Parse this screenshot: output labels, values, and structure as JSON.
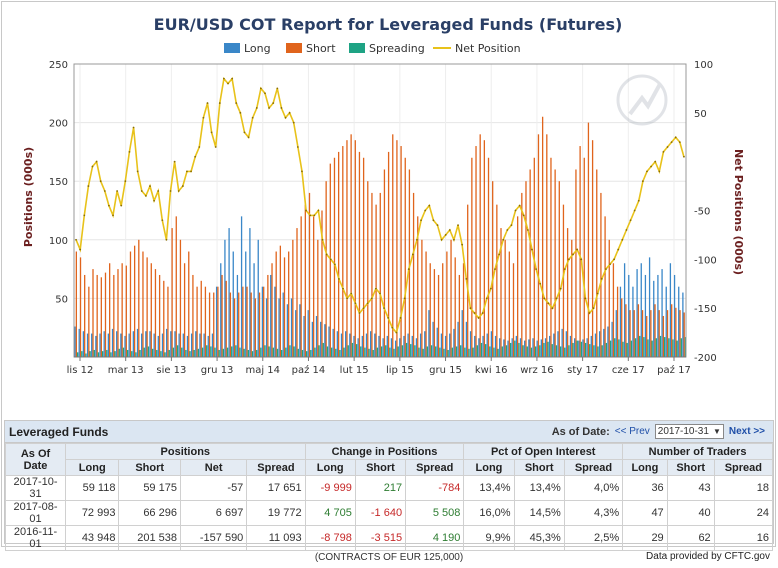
{
  "chart_data": {
    "type": "bar",
    "title": "EUR/USD COT Report for Leveraged Funds (Futures)",
    "ylabel": "Positions (000s)",
    "y2label": "Net Positions (000s)",
    "ylim": [
      0,
      250
    ],
    "y2lim": [
      -200,
      100
    ],
    "yticks": [
      50,
      100,
      150,
      200,
      250
    ],
    "y2ticks": [
      100,
      50,
      -50,
      -100,
      -150,
      -200
    ],
    "xticks": [
      "lis 12",
      "mar 13",
      "sie 13",
      "gru 13",
      "maj 14",
      "paź 14",
      "lut 15",
      "lip 15",
      "gru 15",
      "kwi 16",
      "wrz 16",
      "sty 17",
      "cze 17",
      "paź 17"
    ],
    "legend_position": "top",
    "grid": true,
    "colors": {
      "long": "#3a87c8",
      "short": "#e0641c",
      "spreading": "#1ea384",
      "net": "#e8c21a"
    },
    "series": [
      {
        "name": "Long",
        "values": [
          26,
          24,
          22,
          20,
          20,
          18,
          20,
          22,
          20,
          24,
          22,
          20,
          18,
          20,
          22,
          24,
          20,
          22,
          22,
          20,
          18,
          20,
          24,
          22,
          22,
          20,
          20,
          18,
          20,
          22,
          20,
          20,
          18,
          20,
          60,
          80,
          100,
          110,
          90,
          70,
          120,
          90,
          110,
          80,
          100,
          60,
          50,
          70,
          60,
          50,
          55,
          45,
          50,
          40,
          45,
          35,
          40,
          30,
          35,
          30,
          28,
          26,
          24,
          22,
          20,
          22,
          20,
          18,
          16,
          18,
          20,
          22,
          20,
          18,
          16,
          18,
          16,
          14,
          16,
          18,
          20,
          18,
          16,
          20,
          22,
          40,
          30,
          25,
          20,
          18,
          20,
          24,
          30,
          40,
          30,
          22,
          18,
          16,
          18,
          20,
          22,
          18,
          16,
          15,
          14,
          16,
          18,
          16,
          14,
          15,
          16,
          14,
          15,
          16,
          18,
          20,
          22,
          24,
          22,
          18,
          16,
          14,
          15,
          16,
          18,
          20,
          22,
          24,
          26,
          30,
          40,
          60,
          80,
          70,
          60,
          75,
          80,
          70,
          85,
          65,
          70,
          75,
          60,
          80,
          70,
          60,
          55
        ]
      },
      {
        "name": "Short",
        "values": [
          90,
          85,
          70,
          60,
          75,
          70,
          68,
          72,
          80,
          70,
          75,
          80,
          78,
          90,
          95,
          100,
          90,
          85,
          80,
          75,
          70,
          65,
          60,
          110,
          120,
          100,
          80,
          90,
          70,
          60,
          65,
          60,
          55,
          55,
          60,
          70,
          65,
          55,
          50,
          55,
          60,
          60,
          55,
          50,
          55,
          60,
          70,
          80,
          90,
          95,
          85,
          90,
          100,
          110,
          120,
          130,
          140,
          120,
          100,
          125,
          150,
          165,
          170,
          175,
          180,
          185,
          190,
          185,
          175,
          170,
          150,
          140,
          130,
          140,
          160,
          175,
          190,
          185,
          180,
          170,
          160,
          140,
          120,
          100,
          90,
          80,
          75,
          70,
          80,
          90,
          100,
          85,
          70,
          80,
          130,
          170,
          180,
          190,
          185,
          170,
          150,
          130,
          110,
          100,
          90,
          80,
          120,
          140,
          150,
          160,
          170,
          190,
          205,
          190,
          170,
          160,
          150,
          130,
          110,
          100,
          160,
          180,
          170,
          200,
          185,
          160,
          140,
          120,
          100,
          80,
          60,
          50,
          45,
          40,
          40,
          45,
          40,
          35,
          40,
          45,
          40,
          35,
          40,
          45,
          42,
          40,
          38
        ]
      },
      {
        "name": "Spreading",
        "values": [
          4,
          5,
          3,
          5,
          6,
          4,
          5,
          6,
          4,
          5,
          7,
          8,
          6,
          5,
          4,
          6,
          8,
          9,
          7,
          6,
          5,
          4,
          6,
          8,
          10,
          8,
          6,
          5,
          6,
          7,
          8,
          10,
          9,
          8,
          6,
          7,
          8,
          9,
          10,
          8,
          7,
          6,
          5,
          6,
          8,
          10,
          9,
          8,
          7,
          6,
          8,
          10,
          9,
          7,
          6,
          5,
          6,
          8,
          10,
          12,
          9,
          8,
          7,
          6,
          8,
          10,
          12,
          11,
          9,
          8,
          7,
          6,
          8,
          9,
          10,
          8,
          7,
          9,
          10,
          12,
          11,
          10,
          8,
          7,
          9,
          10,
          9,
          8,
          7,
          6,
          8,
          9,
          10,
          8,
          7,
          8,
          10,
          12,
          11,
          9,
          8,
          7,
          9,
          10,
          12,
          14,
          12,
          10,
          9,
          8,
          9,
          10,
          12,
          13,
          11,
          10,
          9,
          8,
          10,
          12,
          14,
          13,
          12,
          11,
          10,
          9,
          10,
          12,
          14,
          16,
          15,
          13,
          12,
          14,
          16,
          18,
          17,
          15,
          14,
          16,
          18,
          17,
          16,
          15,
          14,
          16,
          17
        ]
      },
      {
        "name": "Net Position",
        "axis": "right",
        "values": [
          -80,
          -90,
          -55,
          -25,
          -5,
          0,
          -20,
          -30,
          -45,
          -55,
          -30,
          -45,
          -20,
          10,
          35,
          -10,
          -30,
          -35,
          -25,
          -40,
          -30,
          -60,
          -80,
          -30,
          0,
          -30,
          -25,
          -10,
          -10,
          5,
          15,
          45,
          60,
          30,
          15,
          60,
          85,
          80,
          85,
          60,
          50,
          30,
          25,
          45,
          55,
          75,
          70,
          55,
          60,
          75,
          55,
          45,
          50,
          40,
          15,
          -10,
          -50,
          -55,
          -55,
          -50,
          -80,
          -95,
          -100,
          -105,
          -120,
          -130,
          -140,
          -135,
          -145,
          -155,
          -150,
          -145,
          -140,
          -130,
          -135,
          -150,
          -160,
          -170,
          -175,
          -160,
          -140,
          -110,
          -95,
          -80,
          -60,
          -50,
          -45,
          -60,
          -65,
          -80,
          -75,
          -70,
          -80,
          -65,
          -85,
          -120,
          -150,
          -155,
          -160,
          -155,
          -140,
          -130,
          -110,
          -95,
          -80,
          -70,
          -65,
          -50,
          -45,
          -55,
          -70,
          -90,
          -110,
          -125,
          -140,
          -145,
          -150,
          -140,
          -130,
          -110,
          -100,
          -95,
          -90,
          -100,
          -140,
          -155,
          -150,
          -135,
          -120,
          -110,
          -105,
          -100,
          -90,
          -80,
          -70,
          -60,
          -50,
          -40,
          -20,
          -10,
          -5,
          0,
          -10,
          10,
          15,
          20,
          25,
          20,
          5
        ]
      }
    ]
  },
  "table": {
    "title": "Leveraged Funds",
    "as_of_label": "As of Date:",
    "prev_label": "<< Prev",
    "selected_date": "2017-10-31",
    "next_label": "Next >>",
    "group_headers": [
      "As Of Date",
      "Positions",
      "Change in Positions",
      "Pct of Open Interest",
      "Number of Traders"
    ],
    "columns": [
      "Long",
      "Short",
      "Net",
      "Spread",
      "Long",
      "Short",
      "Spread",
      "Long",
      "Short",
      "Spread",
      "Long",
      "Short",
      "Spread"
    ],
    "rows": [
      {
        "date": "2017-10-31",
        "cells": [
          "59 118",
          "59 175",
          "-57",
          "17 651",
          "-9 999",
          "217",
          "-784",
          "13,4%",
          "13,4%",
          "4,0%",
          "36",
          "43",
          "18"
        ]
      },
      {
        "date": "2017-08-01",
        "cells": [
          "72 993",
          "66 296",
          "6 697",
          "19 772",
          "4 705",
          "-1 640",
          "5 508",
          "16,0%",
          "14,5%",
          "4,3%",
          "47",
          "40",
          "24"
        ]
      },
      {
        "date": "2016-11-01",
        "cells": [
          "43 948",
          "201 538",
          "-157 590",
          "11 093",
          "-8 798",
          "-3 515",
          "4 190",
          "9,9%",
          "45,3%",
          "2,5%",
          "29",
          "62",
          "16"
        ]
      }
    ],
    "footnote": "(CONTRACTS OF EUR 125,000)"
  },
  "credit": "Data provided by CFTC.gov"
}
